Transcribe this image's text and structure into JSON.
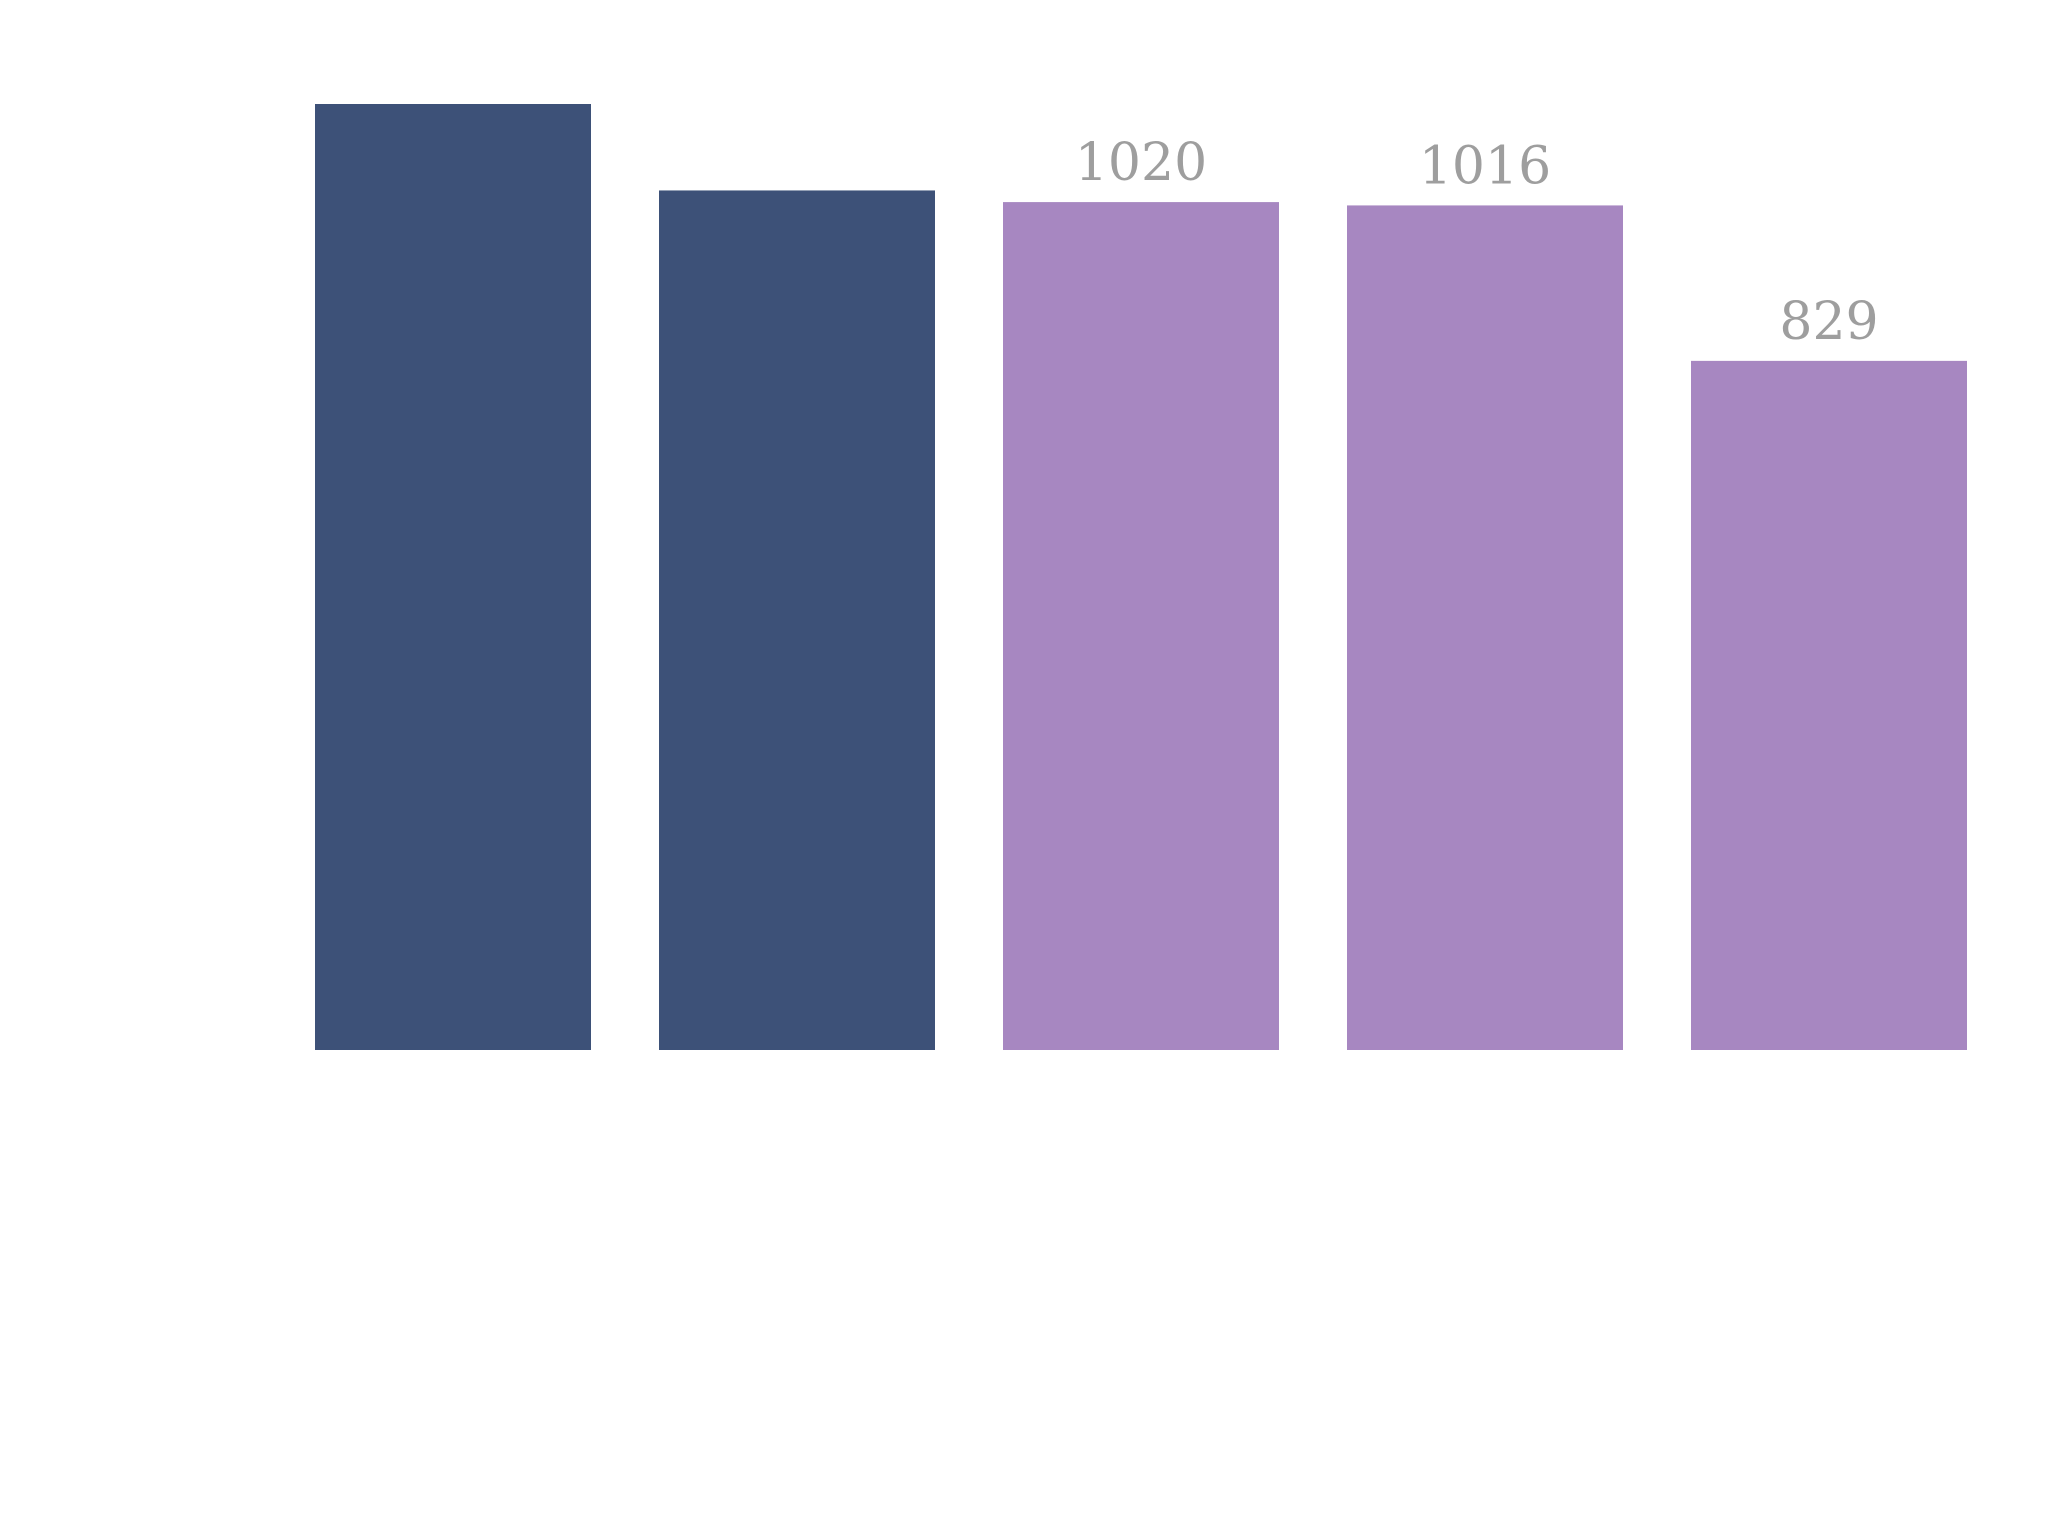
{
  "chart_data": {
    "type": "bar",
    "categories": [
      "",
      "",
      "",
      "",
      ""
    ],
    "values": [
      1138,
      1034,
      1020,
      1016,
      829
    ],
    "data_labels": [
      "",
      "",
      "1020",
      "1016",
      "829"
    ],
    "colors": [
      "#3d5178",
      "#3d5178",
      "#a787c1",
      "#a787c1",
      "#a787c1"
    ],
    "ylim": [
      0,
      1138
    ],
    "grid": false,
    "title": "",
    "xlabel": "",
    "ylabel": ""
  }
}
